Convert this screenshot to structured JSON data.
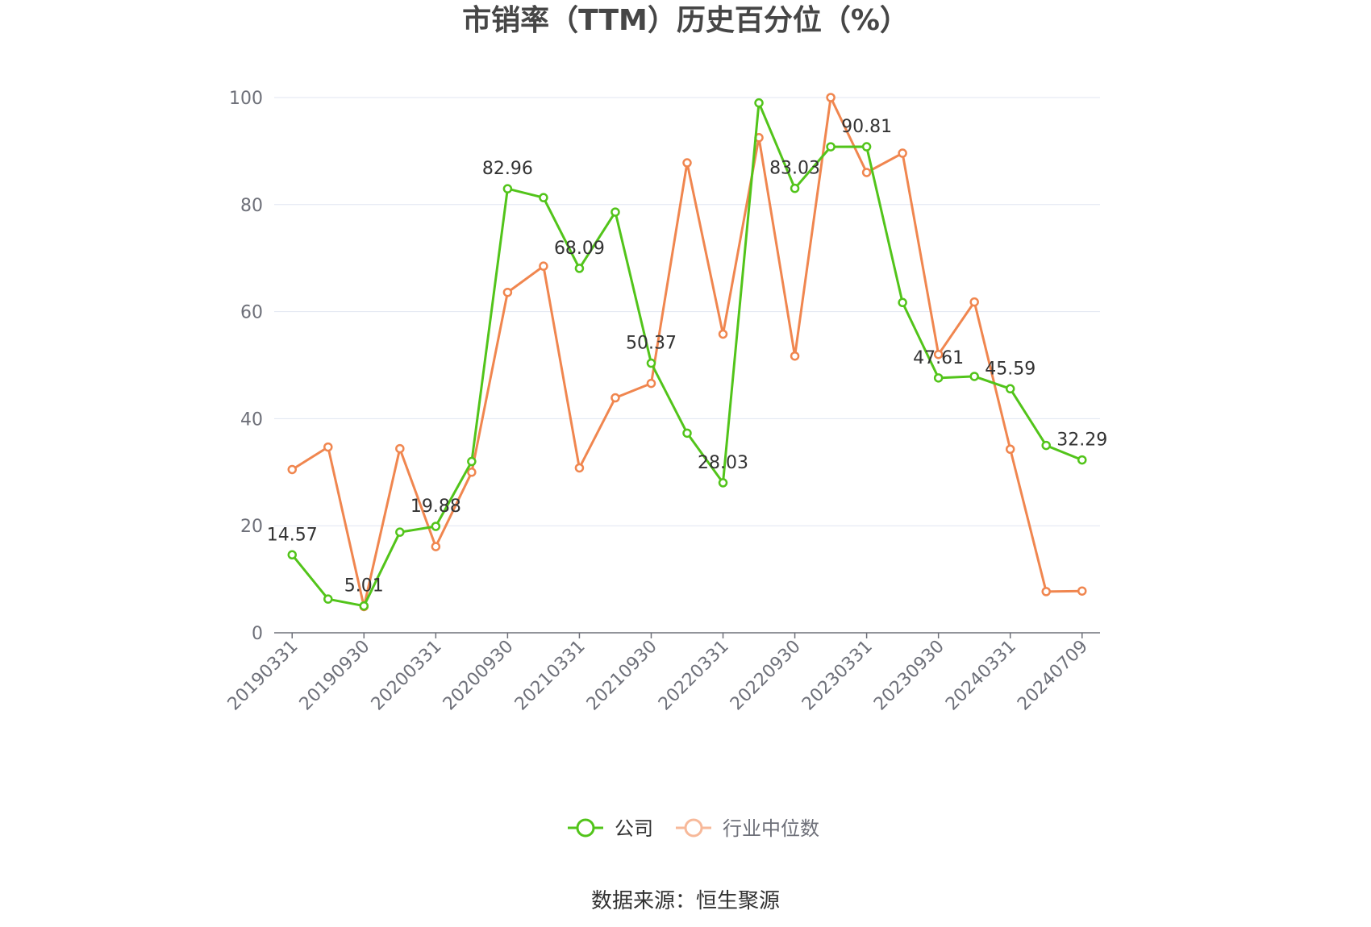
{
  "chart_data": {
    "type": "line",
    "title": "市销率（TTM）历史百分位（%）",
    "source": "数据来源：恒生聚源",
    "ylim": [
      0,
      100
    ],
    "yticks": [
      0,
      20,
      40,
      60,
      80,
      100
    ],
    "grid": true,
    "legend_position": "bottom",
    "x": [
      "20190331",
      "20190630",
      "20190930",
      "20191231",
      "20200331",
      "20200630",
      "20200930",
      "20201231",
      "20210331",
      "20210630",
      "20210930",
      "20211231",
      "20220331",
      "20220630",
      "20220930",
      "20221231",
      "20230331",
      "20230630",
      "20230930",
      "20231231",
      "20240331",
      "20240630",
      "20240709"
    ],
    "x_tick_labels": [
      "20190331",
      "20190930",
      "20200331",
      "20200930",
      "20210331",
      "20210930",
      "20220331",
      "20220930",
      "20230331",
      "20230930",
      "20240331",
      "20240709"
    ],
    "series": [
      {
        "name": "公司",
        "color": "#52c41a",
        "values": [
          14.57,
          6.3,
          5.01,
          18.8,
          19.88,
          32.0,
          82.96,
          81.3,
          68.09,
          78.6,
          50.37,
          37.3,
          28.03,
          99.0,
          83.03,
          90.8,
          90.81,
          61.7,
          47.61,
          47.9,
          45.59,
          35.0,
          32.29
        ],
        "labels": {
          "0": "14.57",
          "2": "5.01",
          "4": "19.88",
          "6": "82.96",
          "8": "68.09",
          "10": "50.37",
          "12": "28.03",
          "14": "83.03",
          "16": "90.81",
          "18": "47.61",
          "20": "45.59",
          "22": "32.29"
        }
      },
      {
        "name": "行业中位数",
        "color": "#f0864f",
        "values": [
          30.5,
          34.7,
          4.9,
          34.4,
          16.1,
          30.0,
          63.6,
          68.5,
          30.8,
          43.9,
          46.6,
          87.8,
          55.8,
          92.5,
          51.7,
          100.0,
          86.0,
          89.6,
          52.0,
          61.8,
          34.3,
          7.7,
          7.8
        ]
      }
    ]
  }
}
